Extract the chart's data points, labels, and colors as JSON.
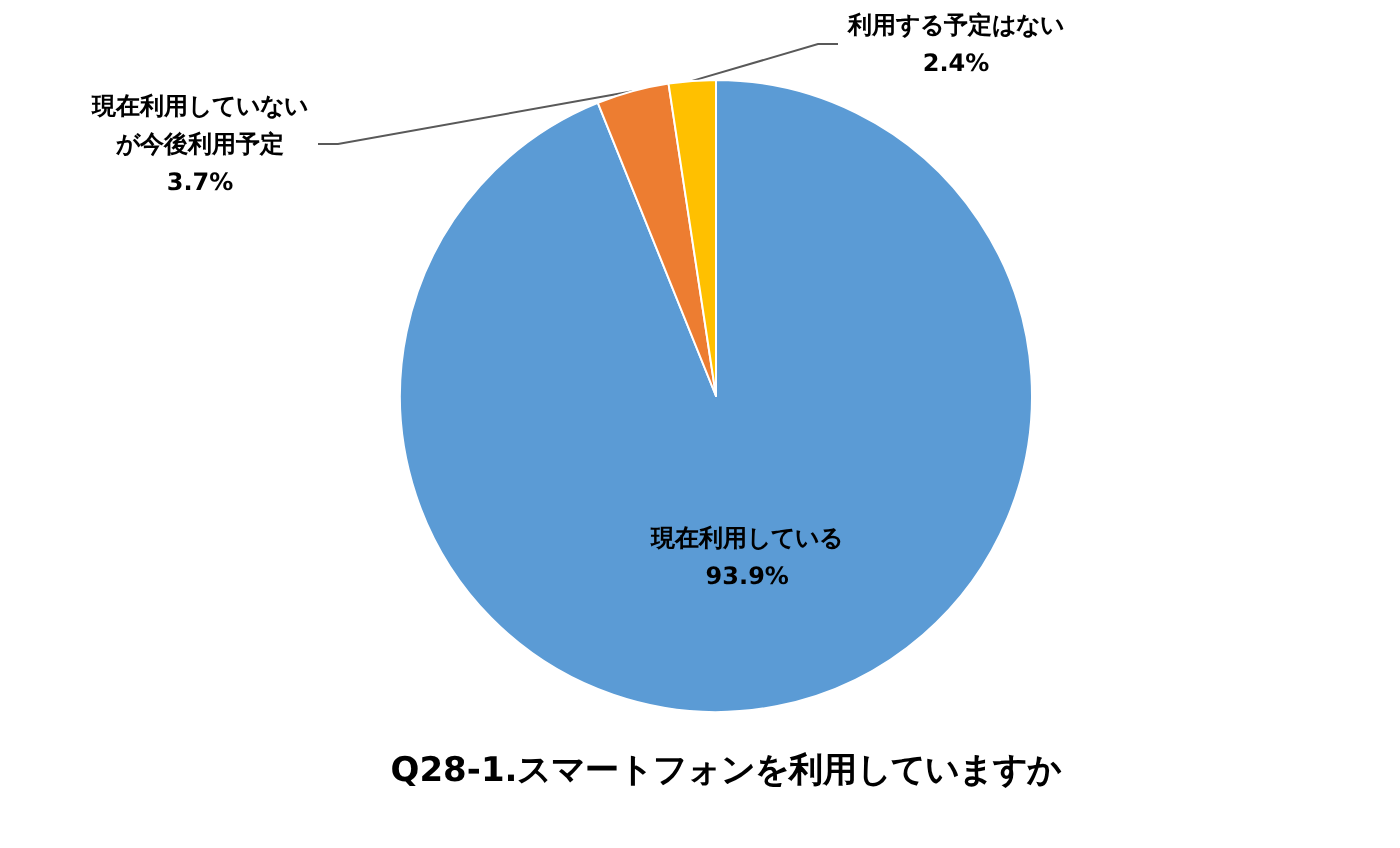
{
  "chart_data": {
    "type": "pie",
    "title": "Q28-1.スマートフォンを利用していますか",
    "categories": [
      "現在利用している",
      "現在利用していないが今後利用予定",
      "利用する予定はない"
    ],
    "values": [
      93.9,
      3.7,
      2.4
    ],
    "value_labels": [
      "93.9%",
      "3.7%",
      "2.4%"
    ],
    "colors": [
      "#5b9bd5",
      "#ed7d31",
      "#ffc000"
    ],
    "legend": false
  }
}
